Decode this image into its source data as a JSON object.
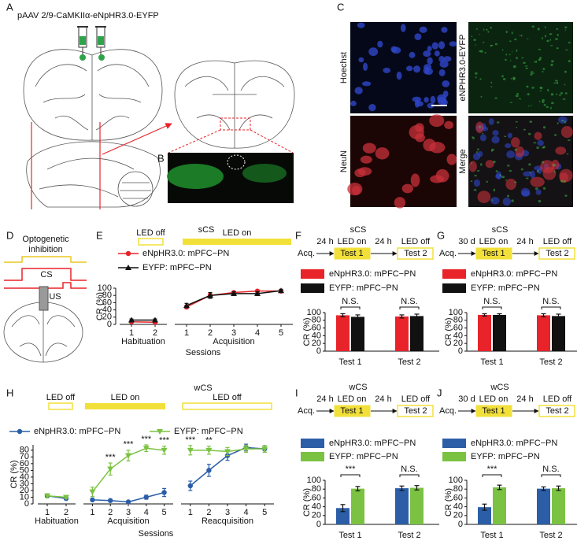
{
  "figure": {
    "A": {
      "panel": "A",
      "title": "pAAV 2/9-CaMKIIα-eNpHR3.0-EYFP"
    },
    "B": {
      "panel": "B"
    },
    "C": {
      "panel": "C",
      "images": [
        "Hoechst",
        "eNPHR3.0-EYFP",
        "NeuN",
        "Merge"
      ]
    },
    "D": {
      "panel": "D",
      "title": [
        "Optogenetic",
        "inhibition"
      ],
      "cs": "CS",
      "us": "US"
    }
  },
  "chart_data": [
    {
      "panel": "E",
      "type": "line",
      "title": "sCS",
      "ylabel": "CR (%)",
      "xlabel": "Sessions",
      "ylim": [
        0,
        100
      ],
      "yticks": [
        0,
        20,
        40,
        60,
        80,
        100
      ],
      "led_color": "#f2e03a",
      "segments": [
        {
          "label": "Habituation",
          "categories": [
            "1",
            "2"
          ],
          "led": "LED off",
          "led_style": "outline"
        },
        {
          "label": "Acquisition",
          "categories": [
            "1",
            "2",
            "3",
            "4",
            "5"
          ],
          "led": "LED on",
          "led_style": "filled"
        }
      ],
      "series": [
        {
          "name": "eNpHR3.0: mPFC−PN",
          "color": "#e8242a",
          "marker": "circle",
          "values": [
            [
              7,
              6
            ],
            [
              48,
              80,
              88,
              92,
              92
            ]
          ],
          "errors": [
            [
              3,
              3
            ],
            [
              5,
              6,
              4,
              3,
              3
            ]
          ]
        },
        {
          "name": "EYFP: mPFC−PN",
          "color": "#111111",
          "marker": "triangle",
          "values": [
            [
              12,
              12
            ],
            [
              52,
              80,
              85,
              85,
              93
            ]
          ],
          "errors": [
            [
              3,
              3
            ],
            [
              6,
              8,
              5,
              5,
              4
            ]
          ]
        }
      ]
    },
    {
      "panel": "F",
      "type": "bar",
      "title": "sCS",
      "ylabel": "CR (%)",
      "ylim": [
        0,
        100
      ],
      "yticks": [
        0,
        20,
        40,
        60,
        80,
        100
      ],
      "led_color": "#f2e03a",
      "protocol": {
        "start": "Acq.",
        "delay1": "24 h",
        "led1": "LED on",
        "step1": "Test 1",
        "delay2": "24 h",
        "led2": "LED off",
        "step2": "Test 2"
      },
      "categories": [
        "Test 1",
        "Test 2"
      ],
      "significance": [
        "N.S.",
        "N.S."
      ],
      "series": [
        {
          "name": "eNpHR3.0: mPFC−PN",
          "color": "#e8242a",
          "values": [
            93,
            90
          ],
          "errors": [
            4,
            4
          ]
        },
        {
          "name": "EYFP: mPFC−PN",
          "color": "#111111",
          "values": [
            89,
            91
          ],
          "errors": [
            5,
            5
          ]
        }
      ]
    },
    {
      "panel": "G",
      "type": "bar",
      "title": "sCS",
      "ylabel": "CR (%)",
      "ylim": [
        0,
        100
      ],
      "yticks": [
        0,
        20,
        40,
        60,
        80,
        100
      ],
      "led_color": "#f2e03a",
      "protocol": {
        "start": "Acq.",
        "delay1": "30 d",
        "led1": "LED on",
        "step1": "Test 1",
        "delay2": "24 h",
        "led2": "LED off",
        "step2": "Test 2"
      },
      "categories": [
        "Test 1",
        "Test 2"
      ],
      "significance": [
        "N.S.",
        "N.S."
      ],
      "series": [
        {
          "name": "eNpHR3.0: mPFC−PN",
          "color": "#e8242a",
          "values": [
            94,
            93
          ],
          "errors": [
            3,
            4
          ]
        },
        {
          "name": "EYFP: mPFC−PN",
          "color": "#111111",
          "values": [
            94,
            91
          ],
          "errors": [
            3,
            5
          ]
        }
      ]
    },
    {
      "panel": "H",
      "type": "line",
      "title": "wCS",
      "ylabel": "CR (%)",
      "xlabel": "Sessions",
      "ylim": [
        0,
        88
      ],
      "yticks": [
        0,
        10,
        20,
        30,
        40,
        50,
        60,
        70,
        80
      ],
      "led_color": "#f2e03a",
      "segments": [
        {
          "label": "Habituation",
          "categories": [
            "1",
            "2"
          ],
          "led": "LED off",
          "led_style": "outline"
        },
        {
          "label": "Acquisition",
          "categories": [
            "1",
            "2",
            "3",
            "4",
            "5"
          ],
          "led": "LED on",
          "led_style": "filled",
          "significance": [
            null,
            "***",
            "***",
            "***",
            "***"
          ]
        },
        {
          "label": "Reacquisition",
          "categories": [
            "1",
            "2",
            "3",
            "4",
            "5"
          ],
          "led": "LED off",
          "led_style": "outline",
          "significance": [
            "***",
            "**",
            null,
            null,
            null
          ]
        }
      ],
      "series": [
        {
          "name": "eNpHR3.0: mPFC−PN",
          "color": "#2b5ea7",
          "marker": "circle",
          "values": [
            [
              12,
              8
            ],
            [
              6,
              5,
              3,
              10,
              17
            ],
            [
              27,
              50,
              72,
              84,
              82
            ]
          ],
          "errors": [
            [
              3,
              2
            ],
            [
              2,
              2,
              1,
              3,
              6
            ],
            [
              7,
              9,
              7,
              5,
              5
            ]
          ]
        },
        {
          "name": "EYFP: mPFC−PN",
          "color": "#7cc242",
          "marker": "triangle-down",
          "values": [
            [
              12,
              10
            ],
            [
              18,
              52,
              72,
              83,
              80
            ],
            [
              80,
              80,
              78,
              82,
              82
            ]
          ],
          "errors": [
            [
              3,
              2
            ],
            [
              7,
              9,
              8,
              5,
              6
            ],
            [
              7,
              6,
              6,
              5,
              5
            ]
          ]
        }
      ]
    },
    {
      "panel": "I",
      "type": "bar",
      "title": "wCS",
      "ylabel": "CR (%)",
      "ylim": [
        0,
        100
      ],
      "yticks": [
        0,
        20,
        40,
        60,
        80,
        100
      ],
      "led_color": "#f2e03a",
      "protocol": {
        "start": "Acq.",
        "delay1": "24 h",
        "led1": "LED on",
        "step1": "Test 1",
        "delay2": "24 h",
        "led2": "LED off",
        "step2": "Test 2"
      },
      "categories": [
        "Test 1",
        "Test 2"
      ],
      "significance": [
        "***",
        "N.S."
      ],
      "series": [
        {
          "name": "eNpHR3.0: mPFC−PN",
          "color": "#2b5ea7",
          "values": [
            37,
            82
          ],
          "errors": [
            8,
            5
          ]
        },
        {
          "name": "EYFP: mPFC−PN",
          "color": "#7cc242",
          "values": [
            81,
            83
          ],
          "errors": [
            5,
            5
          ]
        }
      ]
    },
    {
      "panel": "J",
      "type": "bar",
      "title": "wCS",
      "ylabel": "CR (%)",
      "ylim": [
        0,
        100
      ],
      "yticks": [
        0,
        20,
        40,
        60,
        80,
        100
      ],
      "led_color": "#f2e03a",
      "protocol": {
        "start": "Acq.",
        "delay1": "30 d",
        "led1": "LED on",
        "step1": "Test 1",
        "delay2": "24 h",
        "led2": "LED off",
        "step2": "Test 2"
      },
      "categories": [
        "Test 1",
        "Test 2"
      ],
      "significance": [
        "***",
        "N.S."
      ],
      "series": [
        {
          "name": "eNpHR3.0: mPFC−PN",
          "color": "#2b5ea7",
          "values": [
            39,
            81
          ],
          "errors": [
            7,
            4
          ]
        },
        {
          "name": "EYFP: mPFC−PN",
          "color": "#7cc242",
          "values": [
            84,
            82
          ],
          "errors": [
            5,
            5
          ]
        }
      ]
    }
  ]
}
